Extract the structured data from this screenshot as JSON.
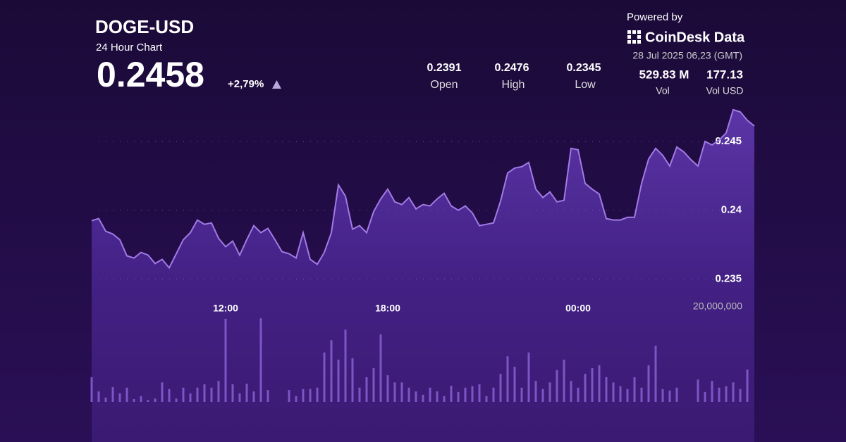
{
  "header": {
    "title": "DOGE-USD",
    "subtitle": "24 Hour Chart",
    "price": "0.2458",
    "change": "+2,79%",
    "stats": [
      {
        "value": "0.2391",
        "label": "Open"
      },
      {
        "value": "0.2476",
        "label": "High"
      },
      {
        "value": "0.2345",
        "label": "Low"
      },
      {
        "value": "529.83 M",
        "label": "Vol"
      },
      {
        "value": "177.13",
        "label": "Vol USD"
      }
    ],
    "powered_by": "Powered by",
    "brand": "CoinDesk Data",
    "timestamp": "28 Jul 2025 06,23 (GMT)"
  },
  "chart_data": {
    "type": "line",
    "color": "#a27ae6",
    "categories": [
      null,
      null,
      null,
      null,
      null,
      null,
      null,
      null,
      null,
      null,
      null,
      null,
      null,
      null,
      null,
      null,
      null,
      null,
      null,
      "12:00",
      null,
      null,
      null,
      null,
      null,
      null,
      null,
      null,
      null,
      null,
      null,
      null,
      null,
      null,
      null,
      null,
      null,
      null,
      null,
      null,
      null,
      null,
      "18:00",
      null,
      null,
      null,
      null,
      null,
      null,
      null,
      null,
      null,
      null,
      null,
      null,
      null,
      null,
      null,
      null,
      null,
      null,
      null,
      null,
      null,
      null,
      null,
      null,
      null,
      null,
      "00:00",
      null,
      null,
      null,
      null,
      null,
      null,
      null,
      null,
      null,
      null,
      null,
      null,
      null,
      null,
      null,
      null,
      null,
      null,
      null,
      null,
      null,
      null,
      null,
      null,
      null
    ],
    "values": [
      0.23924,
      0.23939,
      0.23847,
      0.23827,
      0.23786,
      0.23669,
      0.23653,
      0.23694,
      0.23674,
      0.23613,
      0.23643,
      0.23582,
      0.23684,
      0.23786,
      0.23837,
      0.23929,
      0.23898,
      0.23908,
      0.23796,
      0.23735,
      0.23776,
      0.23674,
      0.23786,
      0.23888,
      0.23837,
      0.23868,
      0.23786,
      0.23699,
      0.23684,
      0.23653,
      0.23837,
      0.23643,
      0.23607,
      0.23694,
      0.23837,
      0.24184,
      0.24102,
      0.23862,
      0.23888,
      0.23837,
      0.2399,
      0.24082,
      0.24153,
      0.24061,
      0.24041,
      0.24092,
      0.2401,
      0.24041,
      0.24031,
      0.24082,
      0.24123,
      0.24031,
      0.24,
      0.24031,
      0.2398,
      0.23888,
      0.23898,
      0.23908,
      0.24066,
      0.2427,
      0.24306,
      0.24316,
      0.24347,
      0.24153,
      0.24092,
      0.24133,
      0.24061,
      0.24072,
      0.24449,
      0.24439,
      0.24194,
      0.24153,
      0.24117,
      0.23939,
      0.23929,
      0.23929,
      0.23949,
      0.23949,
      0.24194,
      0.24372,
      0.24449,
      0.24398,
      0.24321,
      0.24459,
      0.24423,
      0.24367,
      0.24321,
      0.245,
      0.24474,
      0.2451,
      0.24561,
      0.2473,
      0.24714,
      0.24653,
      0.24612
    ],
    "ylim": [
      0.2338,
      0.2476
    ],
    "yticks": [
      0.235,
      0.24,
      0.245
    ],
    "grid": true,
    "volume": {
      "type": "bar",
      "color": "#7d55c4",
      "values": [
        5200000,
        2200000,
        900000,
        3100000,
        1800000,
        3000000,
        600000,
        1200000,
        400000,
        700000,
        4100000,
        2700000,
        700000,
        3000000,
        1800000,
        3000000,
        3700000,
        3000000,
        4400000,
        17500000,
        3700000,
        1800000,
        3800000,
        2200000,
        17600000,
        2500000,
        null,
        null,
        2500000,
        1200000,
        2700000,
        2700000,
        3000000,
        10400000,
        13000000,
        8900000,
        15200000,
        9200000,
        3000000,
        5200000,
        7100000,
        14200000,
        5600000,
        4100000,
        4100000,
        3000000,
        2200000,
        1500000,
        3000000,
        2200000,
        1200000,
        3400000,
        2100000,
        3000000,
        3300000,
        3700000,
        1200000,
        3000000,
        5900000,
        9600000,
        7400000,
        3000000,
        10400000,
        4400000,
        2700000,
        4100000,
        6700000,
        8900000,
        4400000,
        3000000,
        5900000,
        7100000,
        7700000,
        5200000,
        4100000,
        3300000,
        2700000,
        5200000,
        3000000,
        7700000,
        11800000,
        2700000,
        2400000,
        3000000,
        null,
        null,
        4700000,
        2100000,
        4400000,
        3000000,
        3300000,
        4100000,
        2700000,
        6800000,
        null
      ],
      "ylim": [
        0,
        20000000
      ],
      "yticks": [
        {
          "value": 20000000,
          "label": "20,000,000"
        }
      ]
    }
  }
}
